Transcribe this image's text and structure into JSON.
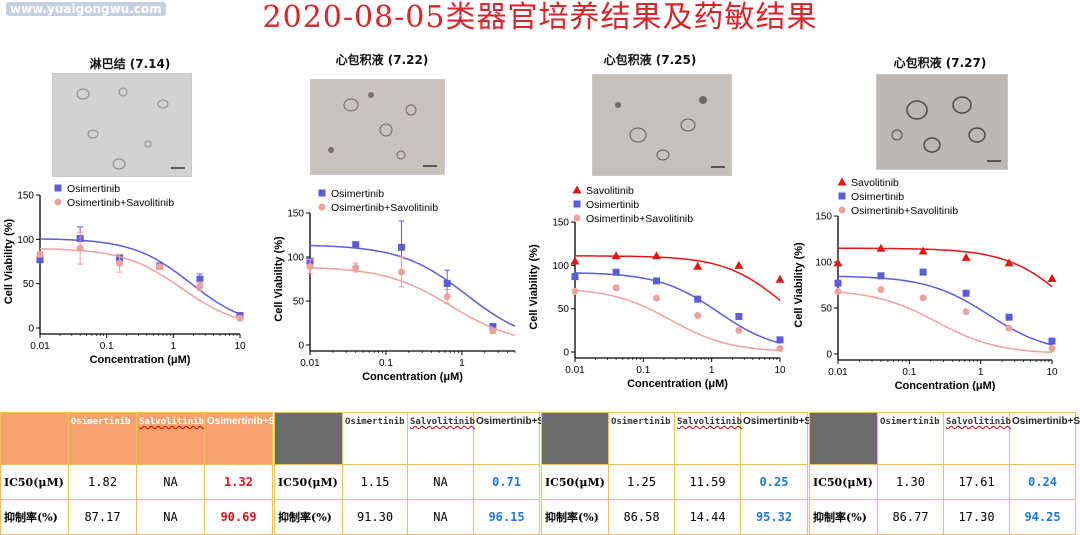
{
  "watermark": "www.yuaigongwu.com",
  "title": "2020-08-05类器官培养结果及药敏结果",
  "colors": {
    "title": "#d8262b",
    "osimertinib": "#5b5bdc",
    "combo": "#f0a0a0",
    "savolitinib": "#e01818",
    "value_red": "#e0141e",
    "value_blue": "#1e78dc",
    "table_header_orange": "#f6a36e",
    "table_header_gray": "#6c6c6c",
    "table_border": "#f0c060"
  },
  "panels": [
    {
      "title": "淋巴结 (7.14)"
    },
    {
      "title": "心包积液 (7.22)"
    },
    {
      "title": "心包积液 (7.25)"
    },
    {
      "title": "心包积液 (7.27)"
    }
  ],
  "chart_data": [
    {
      "type": "scatter",
      "xlabel": "Concentration (μM)",
      "ylabel": "Cell Viability (%)",
      "x_scale": "log",
      "xlim": [
        0.01,
        10
      ],
      "ylim": [
        0,
        150
      ],
      "x_ticks": [
        "0.01",
        "0.1",
        "1",
        "10"
      ],
      "y_ticks": [
        "0",
        "50",
        "100",
        "150"
      ],
      "legend": "top-left",
      "fit_curves": true,
      "grid": false,
      "series": [
        {
          "name": "Osimertinib",
          "color": "#5b5bdc",
          "marker": "square",
          "x": [
            0.01,
            0.04,
            0.156,
            0.625,
            2.5,
            10
          ],
          "y": [
            77,
            101,
            79,
            70,
            55,
            14
          ],
          "err": [
            3,
            13,
            4,
            2,
            6,
            2
          ],
          "ic50": 1.82
        },
        {
          "name": "Osimertinib+Savolitinib",
          "color": "#f0a0a0",
          "marker": "circle",
          "x": [
            0.01,
            0.04,
            0.156,
            0.625,
            2.5,
            10
          ],
          "y": [
            83,
            90,
            73,
            69,
            47,
            11
          ],
          "err": [
            3,
            18,
            10,
            3,
            5,
            2
          ],
          "ic50": 1.32
        }
      ]
    },
    {
      "type": "scatter",
      "xlabel": "Concentration (μM)",
      "ylabel": "Cell Viability (%)",
      "x_scale": "log",
      "xlim": [
        0.01,
        5
      ],
      "ylim": [
        0,
        150
      ],
      "x_ticks": [
        "0.01",
        "0.1",
        "1"
      ],
      "y_ticks": [
        "0",
        "50",
        "100",
        "150"
      ],
      "legend": "top-left",
      "fit_curves": true,
      "grid": false,
      "series": [
        {
          "name": "Osimertinib",
          "color": "#5b5bdc",
          "marker": "square",
          "x": [
            0.01,
            0.04,
            0.16,
            0.64,
            2.56
          ],
          "y": [
            95,
            114,
            111,
            70,
            21
          ],
          "err": [
            3,
            3,
            30,
            15,
            3
          ],
          "ic50": 1.15
        },
        {
          "name": "Osimertinib+Savolitinib",
          "color": "#f0a0a0",
          "marker": "circle",
          "x": [
            0.01,
            0.04,
            0.16,
            0.64,
            2.56
          ],
          "y": [
            89,
            88,
            83,
            55,
            16
          ],
          "err": [
            8,
            5,
            17,
            8,
            3
          ],
          "ic50": 0.71
        }
      ]
    },
    {
      "type": "scatter",
      "xlabel": "Concentration (μM)",
      "ylabel": "Cell Viability (%)",
      "x_scale": "log",
      "xlim": [
        0.01,
        10
      ],
      "ylim": [
        0,
        150
      ],
      "x_ticks": [
        "0.01",
        "0.1",
        "1",
        "10"
      ],
      "y_ticks": [
        "0",
        "50",
        "100",
        "150"
      ],
      "legend": "top-left",
      "fit_curves": true,
      "grid": false,
      "series": [
        {
          "name": "Savolitinib",
          "color": "#e01818",
          "marker": "triangle",
          "x": [
            0.01,
            0.04,
            0.156,
            0.625,
            2.5,
            10
          ],
          "y": [
            105,
            111,
            111,
            99,
            100,
            84
          ],
          "err": [
            0,
            0,
            0,
            0,
            0,
            0
          ],
          "ic50": 11.59
        },
        {
          "name": "Osimertinib",
          "color": "#5b5bdc",
          "marker": "square",
          "x": [
            0.01,
            0.04,
            0.156,
            0.625,
            2.5,
            10
          ],
          "y": [
            87,
            92,
            82,
            61,
            41,
            14
          ],
          "err": [
            0,
            0,
            0,
            0,
            0,
            0
          ],
          "ic50": 1.25
        },
        {
          "name": "Osimertinib+Savolitinib",
          "color": "#f0a0a0",
          "marker": "circle",
          "x": [
            0.01,
            0.04,
            0.156,
            0.625,
            2.5,
            10
          ],
          "y": [
            70,
            74,
            62,
            42,
            25,
            4
          ],
          "err": [
            0,
            0,
            0,
            0,
            0,
            0
          ],
          "ic50": 0.25
        }
      ]
    },
    {
      "type": "scatter",
      "xlabel": "Concentration (μM)",
      "ylabel": "Cell Viability (%)",
      "x_scale": "log",
      "xlim": [
        0.01,
        10
      ],
      "ylim": [
        0,
        150
      ],
      "x_ticks": [
        "0.01",
        "0.1",
        "1",
        "10"
      ],
      "y_ticks": [
        "0",
        "50",
        "100",
        "150"
      ],
      "legend": "top-left",
      "fit_curves": true,
      "grid": false,
      "series": [
        {
          "name": "Savolitinib",
          "color": "#e01818",
          "marker": "triangle",
          "x": [
            0.01,
            0.04,
            0.156,
            0.625,
            2.5,
            10
          ],
          "y": [
            99,
            115,
            112,
            105,
            99,
            82
          ],
          "err": [
            0,
            0,
            0,
            0,
            0,
            0
          ],
          "ic50": 17.61
        },
        {
          "name": "Osimertinib",
          "color": "#5b5bdc",
          "marker": "square",
          "x": [
            0.01,
            0.04,
            0.156,
            0.625,
            2.5,
            10
          ],
          "y": [
            77,
            85,
            89,
            66,
            40,
            14
          ],
          "err": [
            0,
            0,
            0,
            0,
            0,
            0
          ],
          "ic50": 1.3
        },
        {
          "name": "Osimertinib+Savolitinib",
          "color": "#f0a0a0",
          "marker": "circle",
          "x": [
            0.01,
            0.04,
            0.156,
            0.625,
            2.5,
            10
          ],
          "y": [
            68,
            70,
            61,
            46,
            28,
            6
          ],
          "err": [
            0,
            0,
            0,
            0,
            0,
            0
          ],
          "ic50": 0.24
        }
      ]
    }
  ],
  "tables": [
    {
      "headers": [
        "Osimertinib",
        "Salvolitinib",
        "Osimertinib+Salvolitinib"
      ],
      "rows": [
        {
          "label": "IC50(μM)",
          "values": [
            "1.82",
            "NA",
            "1.32"
          ],
          "highlight": "#e0141e"
        },
        {
          "label": "抑制率(%)",
          "values": [
            "87.17",
            "NA",
            "90.69"
          ],
          "highlight": "#e0141e"
        }
      ]
    },
    {
      "headers": [
        "Osimertinib",
        "Salvolitinib",
        "Osimertinib+Salvolitinib"
      ],
      "rows": [
        {
          "label": "IC50(μM)",
          "values": [
            "1.15",
            "NA",
            "0.71"
          ],
          "highlight": "#1e78dc"
        },
        {
          "label": "抑制率(%)",
          "values": [
            "91.30",
            "NA",
            "96.15"
          ],
          "highlight": "#1e78dc"
        }
      ]
    },
    {
      "headers": [
        "Osimertinib",
        "Salvolitinib",
        "Osimertinib+Salvolitinib"
      ],
      "rows": [
        {
          "label": "IC50(μM)",
          "values": [
            "1.25",
            "11.59",
            "0.25"
          ],
          "highlight": "#1e78dc"
        },
        {
          "label": "抑制率(%)",
          "values": [
            "86.58",
            "14.44",
            "95.32"
          ],
          "highlight": "#1e78dc"
        }
      ]
    },
    {
      "headers": [
        "Osimertinib",
        "Salvolitinib",
        "Osimertinib+Salvolitinib"
      ],
      "rows": [
        {
          "label": "IC50(μM)",
          "values": [
            "1.30",
            "17.61",
            "0.24"
          ],
          "highlight": "#1e78dc"
        },
        {
          "label": "抑制率(%)",
          "values": [
            "86.77",
            "17.30",
            "94.25"
          ],
          "highlight": "#1e78dc"
        }
      ]
    }
  ]
}
